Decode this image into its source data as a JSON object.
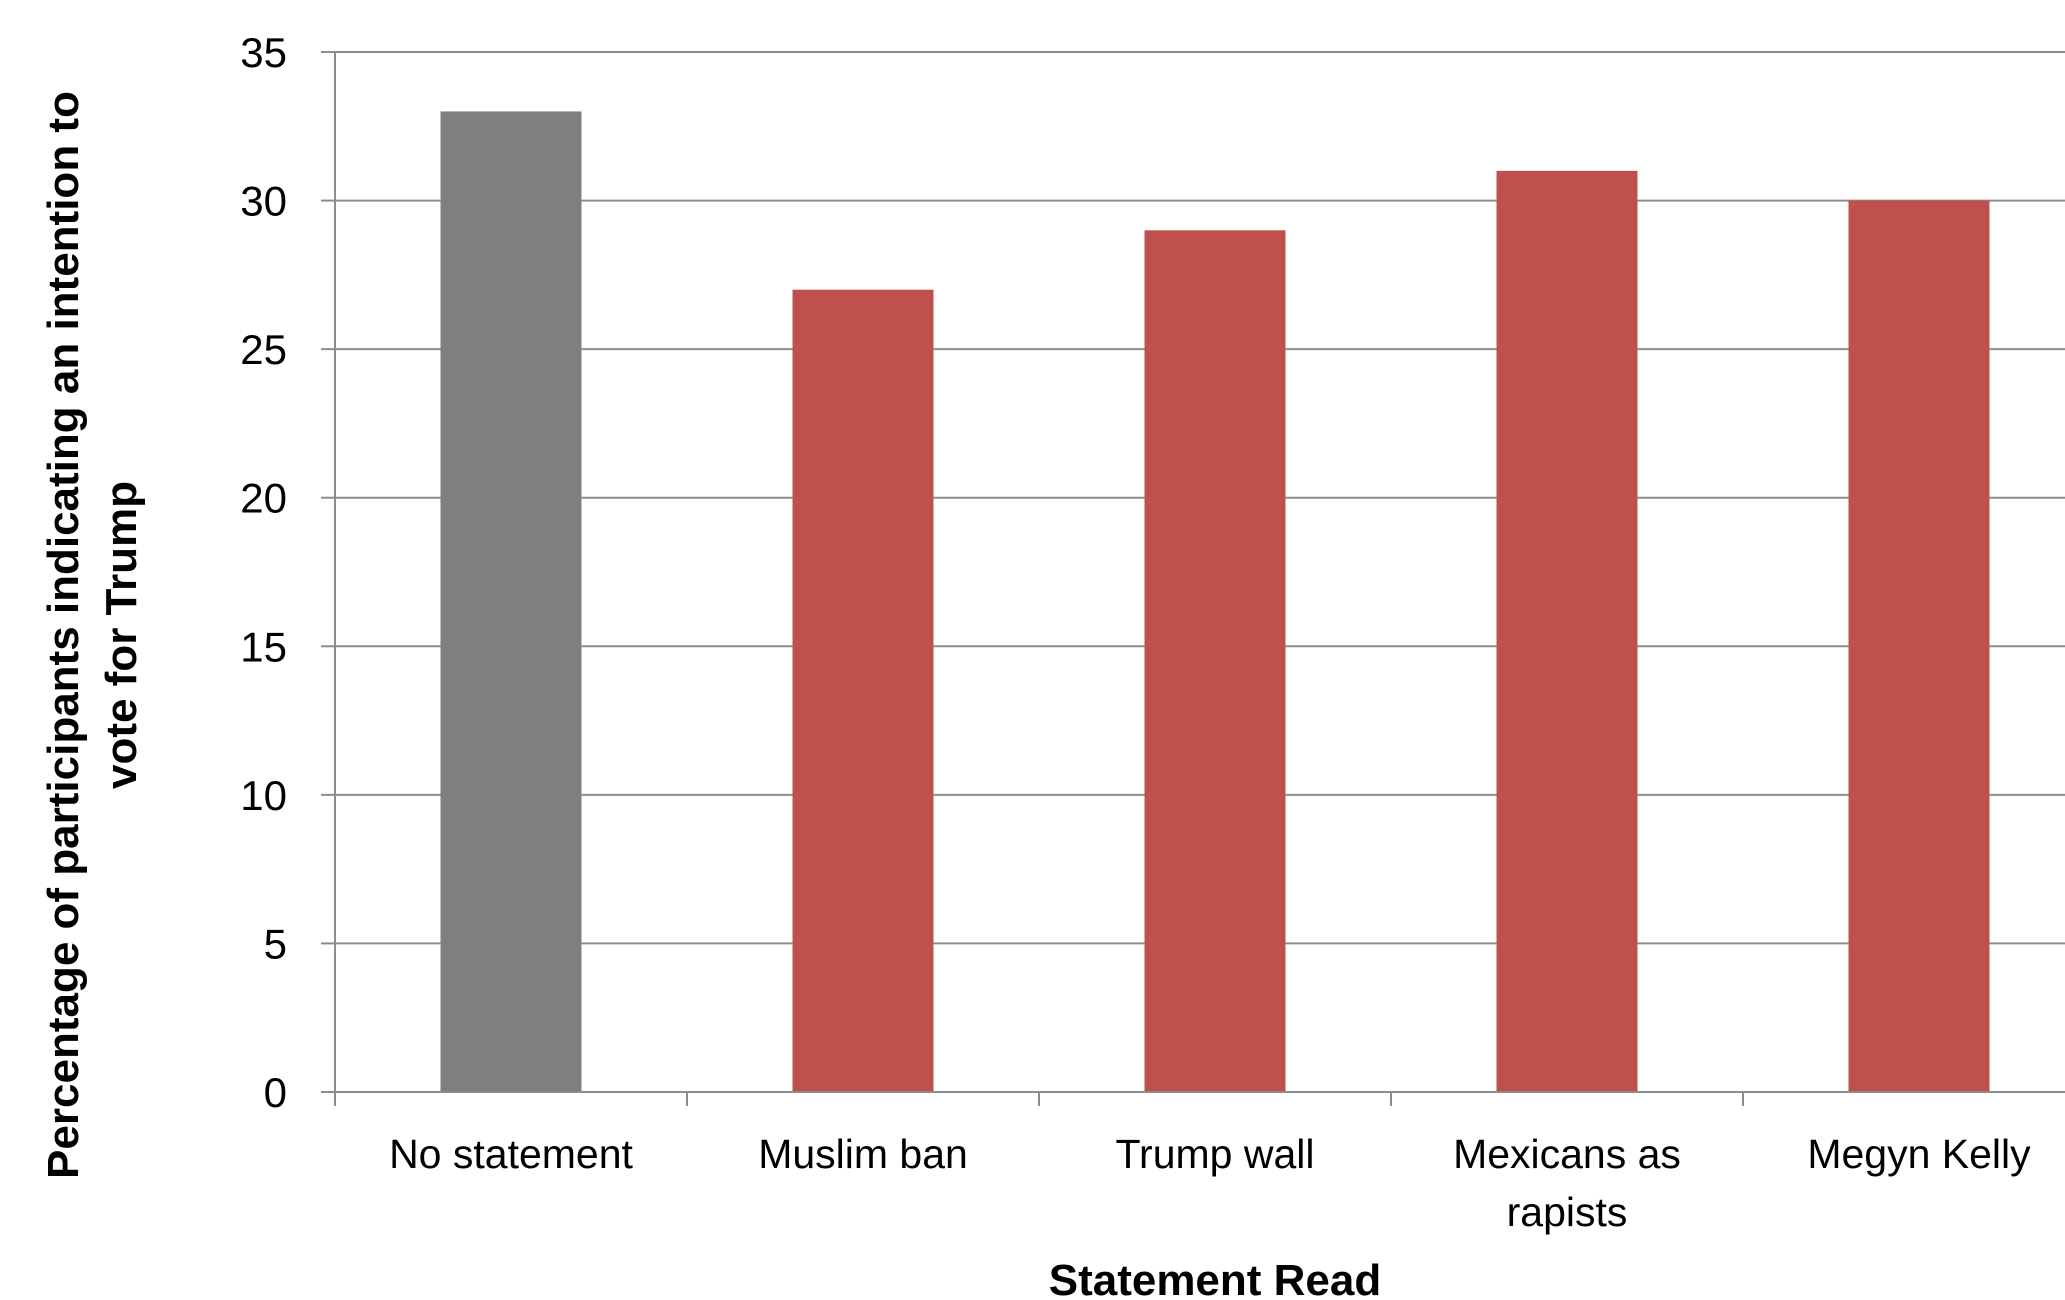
{
  "chart_data": {
    "type": "bar",
    "title": "",
    "xlabel": "Statement Read",
    "ylabel": "Percentage of participants indicating an intention to vote for Trump",
    "ylabel_lines": [
      "Percentage of participants indicating an intention to",
      "vote for Trump"
    ],
    "categories": [
      "No statement",
      "Muslim ban",
      "Trump wall",
      "Mexicans as rapists",
      "Megyn Kelly"
    ],
    "category_lines": [
      [
        "No statement"
      ],
      [
        "Muslim ban"
      ],
      [
        "Trump wall"
      ],
      [
        "Mexicans as",
        "rapists"
      ],
      [
        "Megyn Kelly"
      ]
    ],
    "values": [
      33,
      27,
      29,
      31,
      30
    ],
    "bar_colors": [
      "#7f7f7f",
      "#c0504d",
      "#c0504d",
      "#c0504d",
      "#c0504d"
    ],
    "ylim": [
      0,
      35
    ],
    "yticks": [
      "0",
      "5",
      "10",
      "15",
      "20",
      "25",
      "30",
      "35"
    ],
    "grid": true,
    "gridline_color": "#8c8c8c",
    "legend": "none"
  }
}
